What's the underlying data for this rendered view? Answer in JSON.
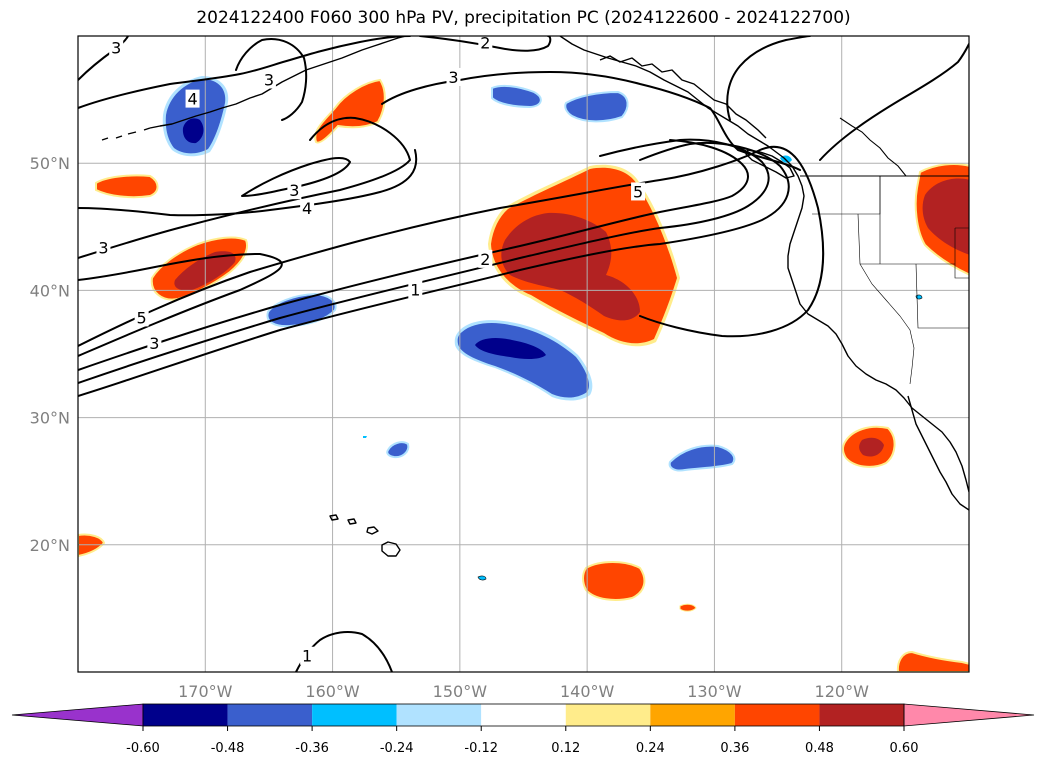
{
  "title": "2024122400 F060 300 hPa PV, precipitation PC (2024122600 - 2024122700)",
  "map": {
    "lon_range": [
      -180,
      -110
    ],
    "lat_range": [
      10,
      60
    ],
    "lon_ticks": [
      {
        "value": -170,
        "label": "170°W"
      },
      {
        "value": -160,
        "label": "160°W"
      },
      {
        "value": -150,
        "label": "150°W"
      },
      {
        "value": -140,
        "label": "140°W"
      },
      {
        "value": -130,
        "label": "130°W"
      },
      {
        "value": -120,
        "label": "120°W"
      }
    ],
    "lat_ticks": [
      {
        "value": 20,
        "label": "20°N"
      },
      {
        "value": 30,
        "label": "30°N"
      },
      {
        "value": 40,
        "label": "40°N"
      },
      {
        "value": 50,
        "label": "50°N"
      }
    ],
    "pv_contour_labels": [
      {
        "text": "3",
        "lon": -177,
        "lat": 59
      },
      {
        "text": "2",
        "lon": -148,
        "lat": 59.4
      },
      {
        "text": "3",
        "lon": -165,
        "lat": 56.5
      },
      {
        "text": "3",
        "lon": -150.5,
        "lat": 56.7
      },
      {
        "text": "4",
        "lon": -171,
        "lat": 55
      },
      {
        "text": "3",
        "lon": -163,
        "lat": 47.8
      },
      {
        "text": "4",
        "lon": -162,
        "lat": 46.4
      },
      {
        "text": "5",
        "lon": -136,
        "lat": 47.7
      },
      {
        "text": "3",
        "lon": -178,
        "lat": 43.3
      },
      {
        "text": "2",
        "lon": -148,
        "lat": 42.4
      },
      {
        "text": "1",
        "lon": -153.5,
        "lat": 40
      },
      {
        "text": "5",
        "lon": -175,
        "lat": 37.8
      },
      {
        "text": "3",
        "lon": -174,
        "lat": 35.8
      },
      {
        "text": "1",
        "lon": -162,
        "lat": 11.2
      }
    ]
  },
  "colorbar": {
    "levels": [
      "-0.60",
      "-0.48",
      "-0.36",
      "-0.24",
      "-0.12",
      "0.12",
      "0.24",
      "0.36",
      "0.48",
      "0.60"
    ],
    "colors": {
      "under": "#9932cc",
      "bins": [
        "#00008b",
        "#3a5fcd",
        "#00bfff",
        "#b0e2ff",
        "#ffffff",
        "#ffec8b",
        "#ffa500",
        "#ff4500",
        "#b22222"
      ],
      "over": "#ff88aa"
    }
  },
  "colors": {
    "land_line": "#000000",
    "grid_line": "#b0b0b0",
    "pv_contour": "#000000"
  }
}
